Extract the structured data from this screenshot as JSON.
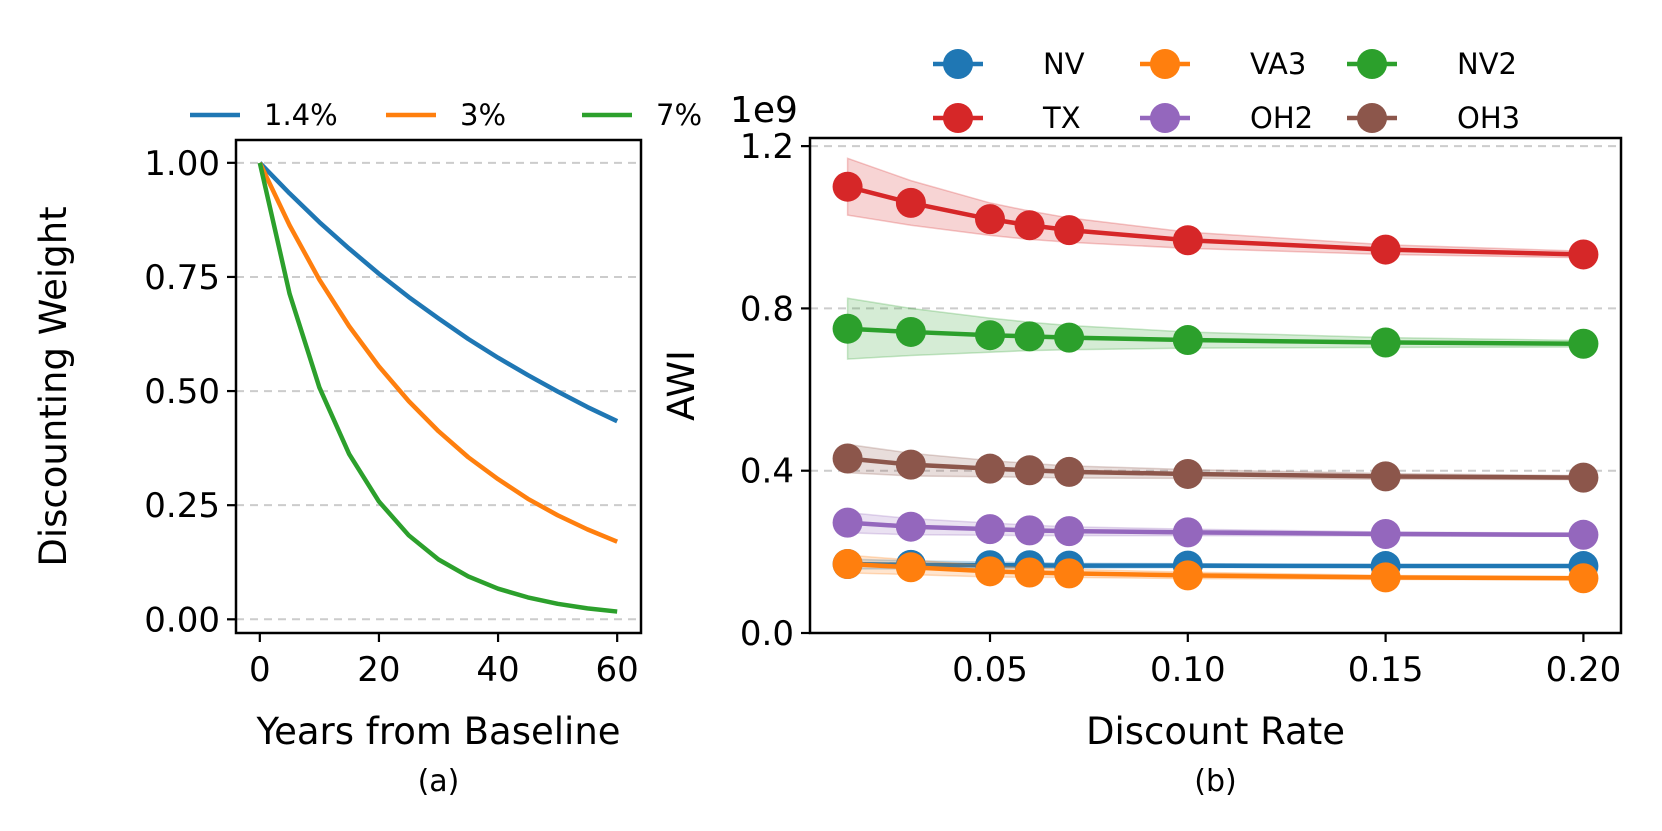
{
  "chart_data": [
    {
      "type": "line",
      "panel": "a",
      "caption": "(a)",
      "title": "",
      "xlabel": "Years from Baseline",
      "ylabel": "Discounting Weight",
      "xlim": [
        -4,
        64
      ],
      "ylim": [
        -0.03,
        1.05
      ],
      "xticks": [
        0,
        20,
        40,
        60
      ],
      "xtick_labels": [
        "0",
        "20",
        "40",
        "60"
      ],
      "yticks": [
        0,
        0.25,
        0.5,
        0.75,
        1.0
      ],
      "ytick_labels": [
        "0.00",
        "0.25",
        "0.50",
        "0.75",
        "1.00"
      ],
      "grid": "horizontal dashed",
      "legend_position": "top",
      "x": [
        0,
        5,
        10,
        15,
        20,
        25,
        30,
        35,
        40,
        45,
        50,
        55,
        60
      ],
      "series": [
        {
          "name": "1.4%",
          "color": "#1f77b4",
          "values": [
            1.0,
            0.933,
            0.87,
            0.812,
            0.757,
            0.706,
            0.659,
            0.614,
            0.573,
            0.535,
            0.499,
            0.465,
            0.434
          ]
        },
        {
          "name": "3%",
          "color": "#ff7f0e",
          "values": [
            1.0,
            0.863,
            0.744,
            0.642,
            0.554,
            0.478,
            0.412,
            0.355,
            0.307,
            0.264,
            0.228,
            0.197,
            0.17
          ]
        },
        {
          "name": "7%",
          "color": "#2ca02c",
          "values": [
            1.0,
            0.713,
            0.508,
            0.362,
            0.258,
            0.184,
            0.131,
            0.094,
            0.067,
            0.048,
            0.034,
            0.024,
            0.017
          ]
        }
      ]
    },
    {
      "type": "line",
      "panel": "b",
      "caption": "(b)",
      "title": "",
      "xlabel": "Discount Rate",
      "ylabel": "AWI",
      "offset_text": "1e9",
      "xlim": [
        0.0045,
        0.2095
      ],
      "ylim": [
        0,
        1.22
      ],
      "xticks": [
        0.05,
        0.1,
        0.15,
        0.2
      ],
      "xtick_labels": [
        "0.05",
        "0.10",
        "0.15",
        "0.20"
      ],
      "yticks": [
        0,
        0.4,
        0.8,
        1.2
      ],
      "ytick_labels": [
        "0.0",
        "0.4",
        "0.8",
        "1.2"
      ],
      "grid": "horizontal dashed",
      "legend_position": "top",
      "marker": "circle",
      "x": [
        0.014,
        0.03,
        0.05,
        0.06,
        0.07,
        0.1,
        0.15,
        0.2
      ],
      "series": [
        {
          "name": "NV",
          "color": "#1f77b4",
          "values": [
            0.17,
            0.168,
            0.167,
            0.167,
            0.166,
            0.166,
            0.165,
            0.165
          ],
          "band": [
            0.012,
            0.01,
            0.008,
            0.007,
            0.006,
            0.005,
            0.003,
            0.002
          ]
        },
        {
          "name": "VA3",
          "color": "#ff7f0e",
          "values": [
            0.17,
            0.162,
            0.152,
            0.149,
            0.147,
            0.142,
            0.137,
            0.135
          ],
          "band": [
            0.022,
            0.018,
            0.014,
            0.012,
            0.01,
            0.008,
            0.005,
            0.004
          ]
        },
        {
          "name": "NV2",
          "color": "#2ca02c",
          "values": [
            0.75,
            0.742,
            0.734,
            0.731,
            0.728,
            0.722,
            0.716,
            0.713
          ],
          "band": [
            0.075,
            0.058,
            0.042,
            0.035,
            0.03,
            0.02,
            0.012,
            0.008
          ]
        },
        {
          "name": "TX",
          "color": "#d62728",
          "values": [
            1.1,
            1.06,
            1.02,
            1.005,
            0.993,
            0.968,
            0.945,
            0.933
          ],
          "band": [
            0.07,
            0.055,
            0.04,
            0.035,
            0.03,
            0.02,
            0.012,
            0.008
          ]
        },
        {
          "name": "OH2",
          "color": "#9467bd",
          "values": [
            0.272,
            0.262,
            0.256,
            0.253,
            0.251,
            0.248,
            0.244,
            0.242
          ],
          "band": [
            0.025,
            0.02,
            0.015,
            0.013,
            0.011,
            0.008,
            0.005,
            0.004
          ]
        },
        {
          "name": "OH3",
          "color": "#8c564b",
          "values": [
            0.43,
            0.415,
            0.405,
            0.401,
            0.397,
            0.392,
            0.386,
            0.383
          ],
          "band": [
            0.035,
            0.028,
            0.02,
            0.017,
            0.015,
            0.011,
            0.007,
            0.005
          ]
        }
      ]
    }
  ]
}
